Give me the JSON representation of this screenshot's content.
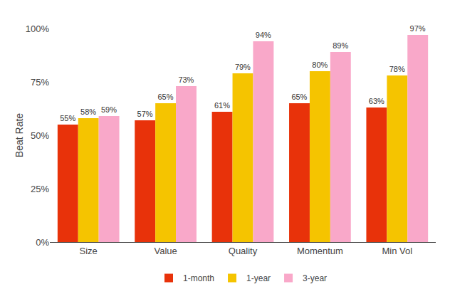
{
  "chart_data": {
    "type": "bar",
    "categories": [
      "Size",
      "Value",
      "Quality",
      "Momentum",
      "Min Vol"
    ],
    "series": [
      {
        "name": "1-month",
        "color": "#E8320A",
        "values": [
          55,
          57,
          61,
          65,
          63
        ],
        "value_labels": [
          "55%",
          "57%",
          "61%",
          "65%",
          "63%"
        ]
      },
      {
        "name": "1-year",
        "color": "#F5C400",
        "values": [
          58,
          65,
          79,
          80,
          78
        ],
        "value_labels": [
          "58%",
          "65%",
          "79%",
          "80%",
          "78%"
        ]
      },
      {
        "name": "3-year",
        "color": "#F9A8C9",
        "values": [
          59,
          73,
          94,
          89,
          97
        ],
        "value_labels": [
          "59%",
          "73%",
          "94%",
          "89%",
          "97%"
        ]
      }
    ],
    "ylabel": "Beat Rate",
    "ylim": [
      0,
      100
    ],
    "yticks": [
      {
        "value": 0,
        "label": "0%"
      },
      {
        "value": 25,
        "label": "25%"
      },
      {
        "value": 50,
        "label": "50%"
      },
      {
        "value": 75,
        "label": "75%"
      },
      {
        "value": 100,
        "label": "100%"
      }
    ],
    "grid": false,
    "legend": "bottom",
    "data_labels": true
  }
}
